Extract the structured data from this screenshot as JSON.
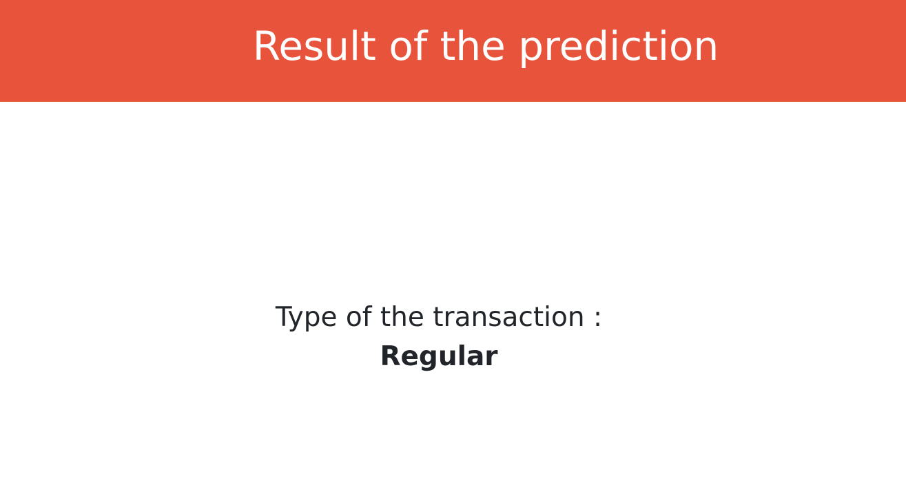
{
  "header": {
    "title": "Result of the prediction"
  },
  "result": {
    "label": "Type of the transaction :",
    "value": "Regular"
  },
  "colors": {
    "header_background": "#e8543b",
    "header_text": "#ffffff",
    "body_text": "#212529",
    "page_background": "#ffffff"
  }
}
